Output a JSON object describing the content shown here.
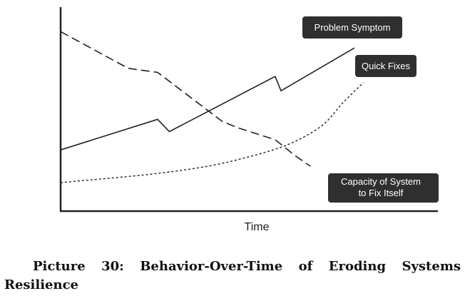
{
  "chart_data": {
    "type": "line",
    "title": "",
    "xlabel": "Time",
    "ylabel": "",
    "x": [
      0,
      1,
      2,
      3,
      4,
      5,
      6,
      7,
      8,
      9,
      10
    ],
    "xlim": [
      0,
      10
    ],
    "ylim": [
      0,
      10
    ],
    "grid": false,
    "legend": "inline labels",
    "series": [
      {
        "name": "Problem Symptom",
        "style": "solid",
        "points": [
          [
            0,
            3.0
          ],
          [
            3.3,
            4.5
          ],
          [
            3.7,
            3.9
          ],
          [
            7.3,
            6.6
          ],
          [
            7.5,
            5.9
          ],
          [
            10,
            8.0
          ]
        ]
      },
      {
        "name": "Quick Fixes",
        "style": "dotted",
        "points": [
          [
            0,
            1.4
          ],
          [
            3.0,
            1.8
          ],
          [
            5.0,
            2.2
          ],
          [
            6.5,
            2.7
          ],
          [
            7.8,
            3.3
          ],
          [
            8.9,
            4.2
          ],
          [
            9.6,
            5.3
          ],
          [
            10.3,
            6.3
          ]
        ]
      },
      {
        "name": "Capacity of System to Fix Itself",
        "style": "dashed",
        "points": [
          [
            0,
            8.8
          ],
          [
            2.3,
            7.0
          ],
          [
            3.3,
            6.8
          ],
          [
            5.5,
            4.4
          ],
          [
            6.0,
            4.1
          ],
          [
            7.3,
            3.5
          ],
          [
            8.0,
            2.7
          ],
          [
            8.5,
            2.2
          ]
        ]
      }
    ],
    "labels": {
      "problem_symptom": "Problem Symptom",
      "quick_fixes": "Quick Fixes",
      "capacity_line1": "Capacity of System",
      "capacity_line2": "to Fix Itself"
    }
  },
  "caption": {
    "text": "Picture 30: Behavior-Over-Time of Eroding Systems Resilience"
  }
}
